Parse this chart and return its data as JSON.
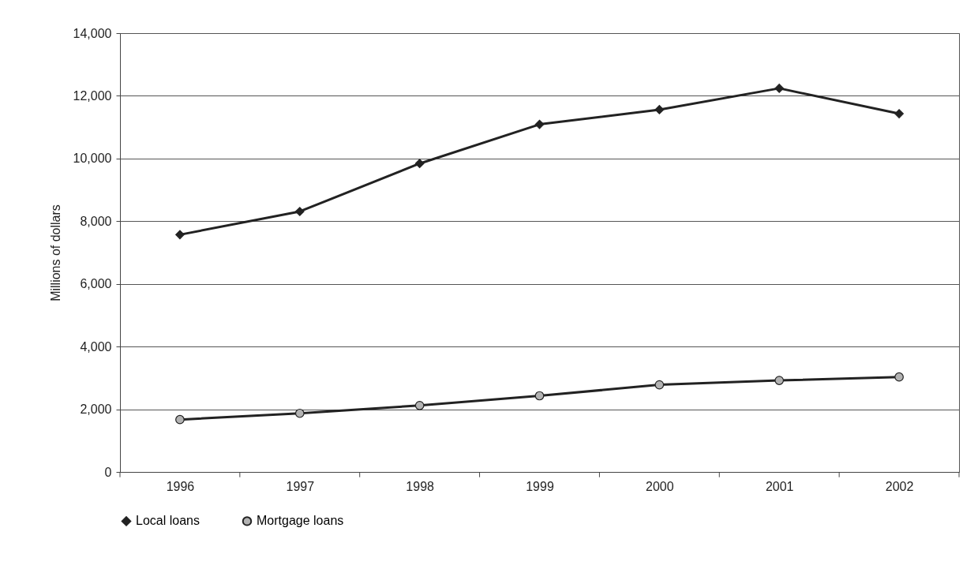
{
  "chart_data": {
    "type": "line",
    "ylabel": "Millions of dollars",
    "categories": [
      "1996",
      "1997",
      "1998",
      "1999",
      "2000",
      "2001",
      "2002"
    ],
    "series": [
      {
        "name": "Local loans",
        "color": "#222222",
        "marker": "diamond",
        "values": [
          7570,
          8310,
          9840,
          11090,
          11560,
          12240,
          11430
        ]
      },
      {
        "name": "Mortgage loans",
        "color": "#222222",
        "marker": "circle",
        "values": [
          1670,
          1870,
          2120,
          2430,
          2780,
          2920,
          3030
        ]
      }
    ],
    "ylim": [
      0,
      14000
    ],
    "yticks": [
      0,
      {
        "value": 2000,
        "label": "2,000"
      },
      {
        "value": 4000,
        "label": "4,000"
      },
      {
        "value": 6000,
        "label": "6,000"
      },
      {
        "value": 8000,
        "label": "8,000"
      },
      {
        "value": 10000,
        "label": "10,000"
      },
      {
        "value": 12000,
        "label": "12,000"
      },
      {
        "value": 14000,
        "label": "14,000"
      }
    ],
    "grid": "y",
    "legend": "bottom",
    "line_style": "solid"
  }
}
